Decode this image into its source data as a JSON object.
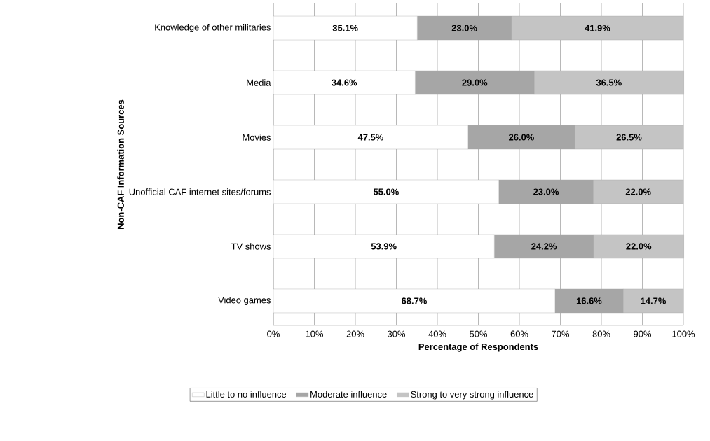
{
  "chart_data": {
    "type": "bar",
    "orientation": "horizontal",
    "stacked": true,
    "xlabel": "Percentage of Respondents",
    "ylabel": "Non-CAF Information Sources",
    "categories": [
      "Knowledge of other militaries",
      "Media",
      "Movies",
      "Unofficial CAF internet sites/forums",
      "TV shows",
      "Video games"
    ],
    "series": [
      {
        "name": "Little to no influence",
        "color": "#ffffff",
        "values": [
          35.1,
          34.6,
          47.5,
          55.0,
          53.9,
          68.7
        ],
        "value_labels": [
          "35.1%",
          "34.6%",
          "47.5%",
          "55.0%",
          "53.9%",
          "68.7%"
        ]
      },
      {
        "name": "Moderate influence",
        "color": "#a6a6a6",
        "values": [
          23.0,
          29.0,
          26.0,
          23.0,
          24.2,
          16.6
        ],
        "value_labels": [
          "23.0%",
          "29.0%",
          "26.0%",
          "23.0%",
          "24.2%",
          "16.6%"
        ]
      },
      {
        "name": "Strong to very strong influence",
        "color": "#c4c4c4",
        "values": [
          41.9,
          36.5,
          26.5,
          22.0,
          22.0,
          14.7
        ],
        "value_labels": [
          "41.9%",
          "36.5%",
          "26.5%",
          "22.0%",
          "22.0%",
          "14.7%"
        ]
      }
    ],
    "xlim": [
      0,
      100
    ],
    "xticks": [
      {
        "value": 0,
        "label": "0%"
      },
      {
        "value": 10,
        "label": "10%"
      },
      {
        "value": 20,
        "label": "20%"
      },
      {
        "value": 30,
        "label": "30%"
      },
      {
        "value": 40,
        "label": "40%"
      },
      {
        "value": 50,
        "label": "50%"
      },
      {
        "value": 60,
        "label": "60%"
      },
      {
        "value": 70,
        "label": "70%"
      },
      {
        "value": 80,
        "label": "80%"
      },
      {
        "value": 90,
        "label": "90%"
      },
      {
        "value": 100,
        "label": "100%"
      }
    ],
    "grid": "x",
    "legend": "bottom"
  }
}
